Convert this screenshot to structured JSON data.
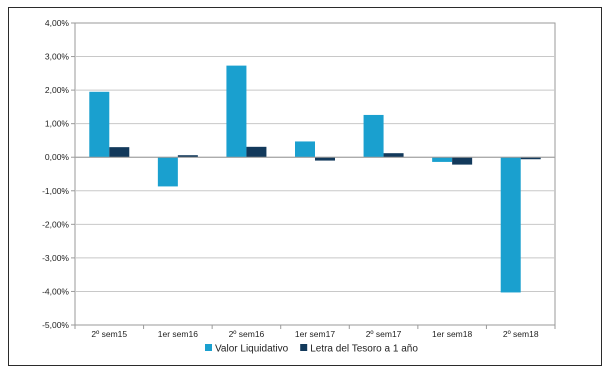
{
  "chart_data": {
    "type": "bar",
    "categories": [
      "2º sem15",
      "1er sem16",
      "2º sem16",
      "1er sem17",
      "2º sem17",
      "1er sem18",
      "2º sem18"
    ],
    "series": [
      {
        "name": "Valor Liquidativo",
        "values": [
          1.95,
          -0.87,
          2.73,
          0.47,
          1.26,
          -0.14,
          -4.03
        ],
        "color": "#1aa0cf"
      },
      {
        "name": "Letra del Tesoro a 1 año",
        "values": [
          0.3,
          0.06,
          0.31,
          -0.1,
          0.12,
          -0.22,
          -0.06
        ],
        "color": "#12395b"
      }
    ],
    "ylim": [
      -5,
      4
    ],
    "yticks": [
      "-5,00%",
      "-4,00%",
      "-3,00%",
      "-2,00%",
      "-1,00%",
      "0,00%",
      "1,00%",
      "2,00%",
      "3,00%",
      "4,00%"
    ],
    "grid": true,
    "legend": "bottom",
    "title": "",
    "xlabel": "",
    "ylabel": ""
  }
}
